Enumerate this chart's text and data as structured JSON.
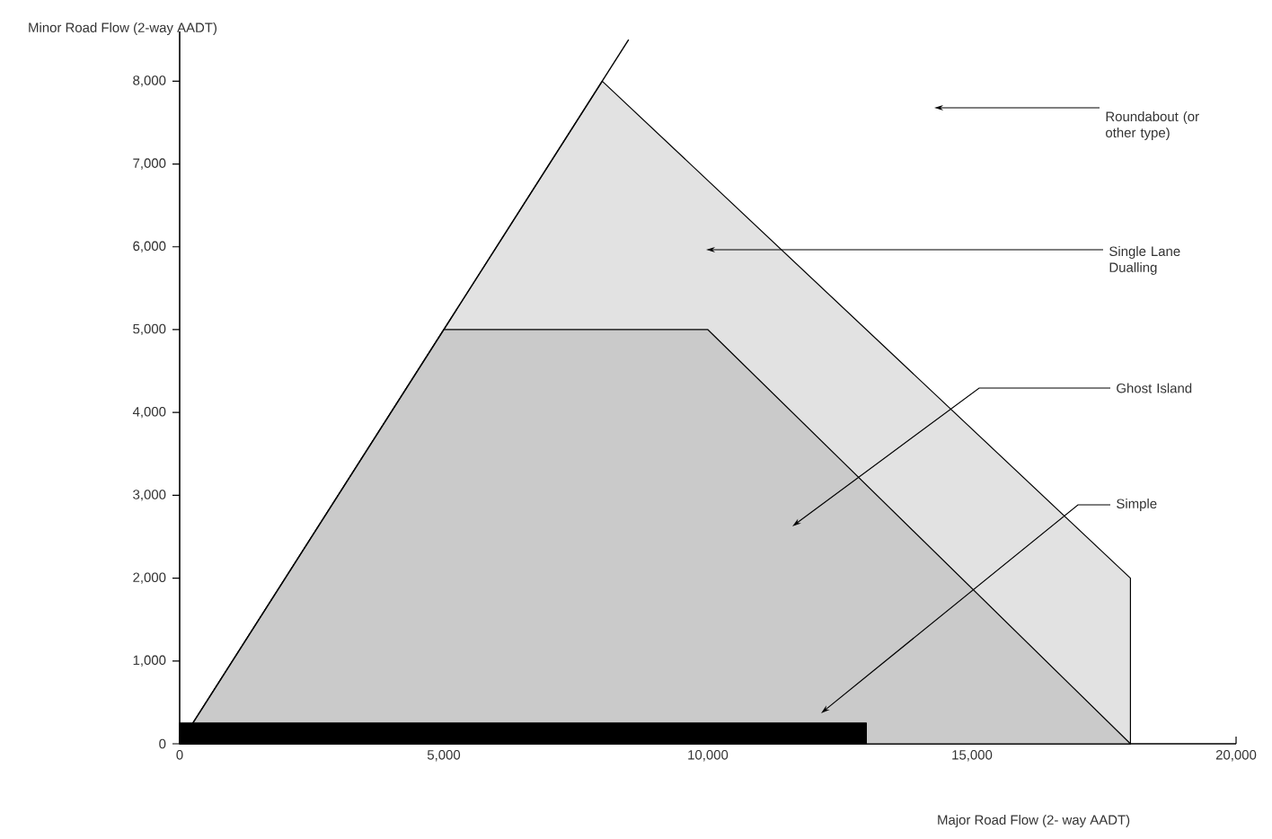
{
  "chart_data": {
    "type": "area",
    "xlabel": "Major Road Flow (2- way AADT)",
    "ylabel": "Minor Road Flow (2-way AADT)",
    "xlim": [
      0,
      20000
    ],
    "ylim": [
      0,
      8600
    ],
    "xticks": [
      {
        "value": 0,
        "label": "0"
      },
      {
        "value": 5000,
        "label": "5,000"
      },
      {
        "value": 10000,
        "label": "10,000"
      },
      {
        "value": 15000,
        "label": "15,000"
      },
      {
        "value": 20000,
        "label": "20,000"
      }
    ],
    "yticks": [
      {
        "value": 0,
        "label": "0"
      },
      {
        "value": 1000,
        "label": "1,000"
      },
      {
        "value": 2000,
        "label": "2,000"
      },
      {
        "value": 3000,
        "label": "3,000"
      },
      {
        "value": 4000,
        "label": "4,000"
      },
      {
        "value": 5000,
        "label": "5,000"
      },
      {
        "value": 6000,
        "label": "6,000"
      },
      {
        "value": 7000,
        "label": "7,000"
      },
      {
        "value": 8000,
        "label": "8,000"
      }
    ],
    "grid": false,
    "series": [
      {
        "color": "#e2e2e2",
        "x": [
          0,
          8000,
          18000,
          18000
        ],
        "values": [
          0,
          8000,
          2000,
          0
        ]
      },
      {
        "color": "#cacaca",
        "x": [
          0,
          5000,
          10000,
          18000
        ],
        "values": [
          0,
          5000,
          5000,
          0
        ]
      },
      {
        "color": "#000000",
        "x": [
          0,
          13000
        ],
        "values": [
          250,
          250
        ]
      },
      {
        "type": "line",
        "color": "#000000",
        "x": [
          0,
          8500
        ],
        "values": [
          0,
          8500
        ]
      }
    ],
    "annotations": [
      "Roundabout (or other type)",
      "Single Lane Dualling",
      "Ghost Island",
      "Simple"
    ]
  }
}
